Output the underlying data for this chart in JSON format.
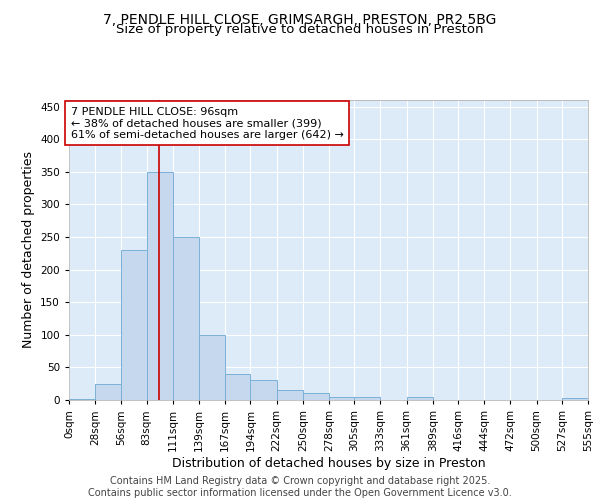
{
  "title1": "7, PENDLE HILL CLOSE, GRIMSARGH, PRESTON, PR2 5BG",
  "title2": "Size of property relative to detached houses in Preston",
  "xlabel": "Distribution of detached houses by size in Preston",
  "ylabel": "Number of detached properties",
  "bin_edges": [
    0,
    28,
    56,
    83,
    111,
    139,
    167,
    194,
    222,
    250,
    278,
    305,
    333,
    361,
    389,
    416,
    444,
    472,
    500,
    527,
    555
  ],
  "bin_heights": [
    2,
    25,
    230,
    350,
    250,
    100,
    40,
    30,
    15,
    10,
    5,
    4,
    0,
    4,
    0,
    0,
    0,
    0,
    0,
    3
  ],
  "bar_color": "#c5d8ee",
  "bar_edge_color": "#7ab0d8",
  "bar_linewidth": 0.7,
  "vline_x": 96,
  "vline_color": "#cc0000",
  "vline_linewidth": 1.2,
  "annotation_text": "7 PENDLE HILL CLOSE: 96sqm\n← 38% of detached houses are smaller (399)\n61% of semi-detached houses are larger (642) →",
  "annotation_box_color": "#ffffff",
  "annotation_edge_color": "#cc0000",
  "ylim": [
    0,
    460
  ],
  "yticks": [
    0,
    50,
    100,
    150,
    200,
    250,
    300,
    350,
    400,
    450
  ],
  "fig_bg_color": "#ffffff",
  "plot_bg_color": "#ddeaf8",
  "grid_color": "#ffffff",
  "footer_text": "Contains HM Land Registry data © Crown copyright and database right 2025.\nContains public sector information licensed under the Open Government Licence v3.0.",
  "title_fontsize": 10,
  "subtitle_fontsize": 9.5,
  "axis_label_fontsize": 9,
  "tick_fontsize": 7.5,
  "annotation_fontsize": 8,
  "footer_fontsize": 7
}
